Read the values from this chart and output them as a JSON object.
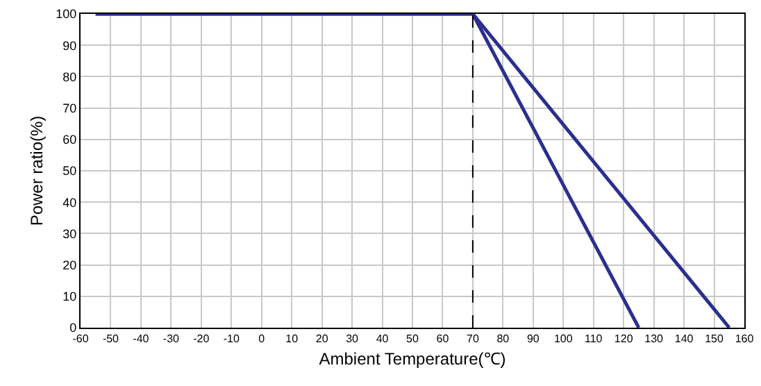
{
  "chart_data": {
    "type": "line",
    "xlabel": "Ambient Temperature(℃)",
    "ylabel": "Power ratio(%)",
    "series": [
      {
        "color": "#2b2f8f",
        "x": [
          -55,
          70,
          125
        ],
        "values": [
          100,
          100,
          0
        ]
      },
      {
        "color": "#2b2f8f",
        "x": [
          -55,
          70,
          155
        ],
        "values": [
          100,
          100,
          0
        ]
      }
    ],
    "xlim": [
      -60,
      160
    ],
    "xticks": [
      -60,
      -50,
      -40,
      -30,
      -20,
      -10,
      0,
      10,
      20,
      30,
      40,
      50,
      60,
      70,
      80,
      90,
      100,
      110,
      120,
      130,
      140,
      150,
      160
    ],
    "ylim": [
      0,
      100
    ],
    "yticks": [
      0,
      10,
      20,
      30,
      40,
      50,
      60,
      70,
      80,
      90,
      100
    ],
    "grid": true,
    "marker": "none",
    "line_style": "solid",
    "ref_lines": [
      {
        "axis": "x",
        "value": 70,
        "color": "#000000",
        "line_style": "dashed"
      }
    ]
  }
}
